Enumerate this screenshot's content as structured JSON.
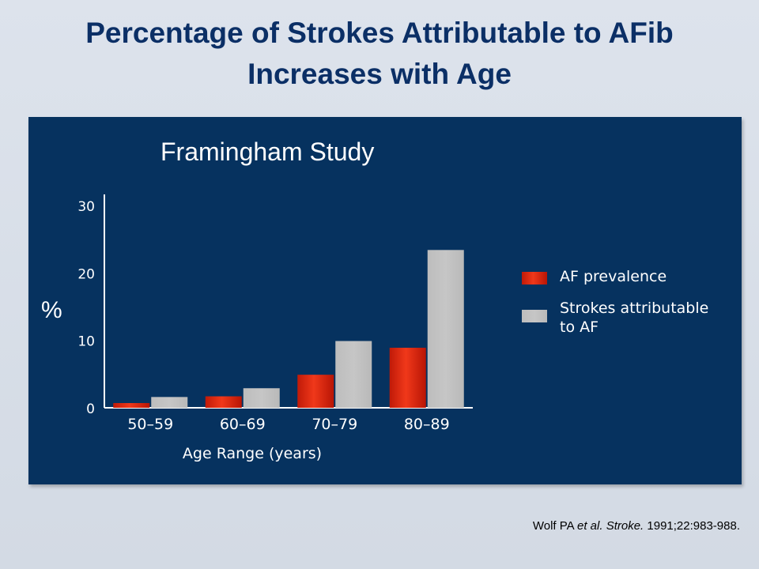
{
  "slide": {
    "title_line1": "Percentage of Strokes Attributable to AFib",
    "title_line2": "Increases with Age"
  },
  "citation": {
    "author": "Wolf PA",
    "et_al": "et al.",
    "journal": "Stroke.",
    "rest": "1991;22:983-988."
  },
  "colors": {
    "panel_bg": "#06325f",
    "af_prevalence": "#e32b0f",
    "strokes_attributable": "#c0c0c0",
    "title": "#0b2f66"
  },
  "chart_data": {
    "type": "bar",
    "title": "Framingham Study",
    "xlabel": "Age Range (years)",
    "ylabel": "%",
    "ylim": [
      0,
      30
    ],
    "yticks": [
      "0",
      "10",
      "20",
      "30"
    ],
    "categories": [
      "50–59",
      "60–69",
      "70–79",
      "80–89"
    ],
    "series": [
      {
        "name": "AF prevalence",
        "values": [
          0.7,
          1.7,
          4.9,
          8.9
        ]
      },
      {
        "name": "Strokes attributable to AF",
        "values": [
          1.6,
          2.9,
          9.9,
          23.4
        ]
      }
    ],
    "legend": {
      "placement": "right",
      "items": [
        {
          "lines": [
            "AF prevalence"
          ]
        },
        {
          "lines": [
            "Strokes attributable",
            "to AF"
          ]
        }
      ]
    },
    "grid": false
  }
}
